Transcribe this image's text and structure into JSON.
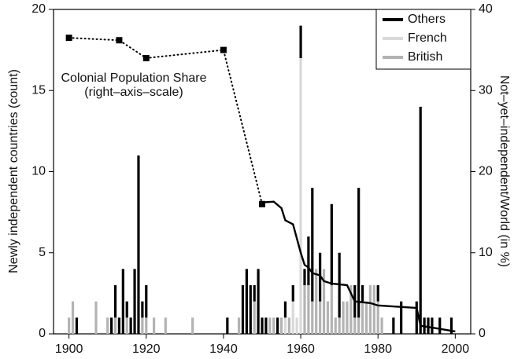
{
  "chart_data": {
    "type": "bar",
    "stacked": true,
    "ylabel": "Newly independent countries (count)",
    "y2label": "Not–yet–independent/World (in %)",
    "xlim": [
      1896,
      2004
    ],
    "xticks": [
      1900,
      1920,
      1940,
      1960,
      1980,
      2000
    ],
    "ylim": [
      0,
      20
    ],
    "yticks": [
      0,
      5,
      10,
      15,
      20
    ],
    "y2lim": [
      0,
      40
    ],
    "y2ticks": [
      0,
      10,
      20,
      30,
      40
    ],
    "legend": "top-right",
    "x": [
      1900,
      1901,
      1902,
      1907,
      1910,
      1911,
      1912,
      1913,
      1914,
      1915,
      1916,
      1917,
      1918,
      1919,
      1920,
      1922,
      1925,
      1932,
      1941,
      1944,
      1945,
      1946,
      1947,
      1948,
      1949,
      1950,
      1951,
      1952,
      1953,
      1954,
      1955,
      1956,
      1957,
      1958,
      1959,
      1960,
      1961,
      1962,
      1963,
      1964,
      1965,
      1966,
      1967,
      1968,
      1969,
      1970,
      1971,
      1972,
      1973,
      1974,
      1975,
      1976,
      1977,
      1978,
      1979,
      1980,
      1981,
      1984,
      1986,
      1990,
      1991,
      1992,
      1993,
      1994,
      1996,
      1999
    ],
    "series": [
      {
        "name": "British",
        "color": "#b3b3b3",
        "values": [
          1,
          2,
          0,
          2,
          1,
          0,
          1,
          0,
          0,
          1,
          0,
          0,
          0,
          1,
          1,
          1,
          1,
          1,
          0,
          1,
          0,
          0,
          0,
          2,
          0,
          0,
          0,
          1,
          1,
          0,
          1,
          0,
          1,
          0,
          0,
          0,
          3,
          3,
          2,
          4,
          2,
          4,
          2,
          3,
          1,
          1,
          2,
          2,
          3,
          1,
          1,
          2,
          2,
          3,
          3,
          2,
          1,
          0,
          0,
          0,
          0,
          0,
          0,
          0,
          0,
          0
        ]
      },
      {
        "name": "French",
        "color": "#d9d9d9",
        "values": [
          0,
          0,
          0,
          0,
          0,
          0,
          0,
          0,
          0,
          0,
          0,
          0,
          0,
          0,
          0,
          0,
          0,
          0,
          0,
          0,
          0,
          0,
          0,
          0,
          0,
          0,
          0,
          0,
          0,
          0,
          0,
          1,
          0,
          2,
          1,
          17,
          0,
          0,
          0,
          0,
          0,
          0,
          0,
          0,
          0,
          0,
          0,
          0,
          0,
          0,
          0,
          0,
          0,
          0,
          0,
          0,
          0,
          0,
          0,
          0,
          0,
          0,
          0,
          0,
          0,
          0
        ]
      },
      {
        "name": "Others",
        "color": "#000000",
        "values": [
          0,
          0,
          1,
          0,
          0,
          1,
          2,
          1,
          4,
          1,
          1,
          4,
          11,
          1,
          2,
          0,
          0,
          0,
          1,
          0,
          3,
          4,
          3,
          1,
          4,
          1,
          1,
          0,
          0,
          1,
          0,
          1,
          0,
          1,
          0,
          2,
          1,
          3,
          7,
          0,
          3,
          0,
          0,
          5,
          0,
          4,
          0,
          0,
          0,
          2,
          8,
          1,
          0,
          0,
          0,
          1,
          0,
          1,
          2,
          2,
          14,
          1,
          1,
          1,
          1,
          1
        ]
      }
    ],
    "lines": [
      {
        "axis": "y2",
        "style": "dotted",
        "markers": true,
        "color": "#000000",
        "x": [
          1900,
          1913,
          1920,
          1940,
          1950
        ],
        "values": [
          36.5,
          36.2,
          34,
          35,
          16
        ]
      },
      {
        "axis": "y2",
        "style": "solid",
        "markers": false,
        "color": "#000000",
        "x": [
          1950,
          1953,
          1955,
          1956,
          1958,
          1960,
          1961,
          1962,
          1963,
          1965,
          1966,
          1968,
          1972,
          1973,
          1974,
          1978,
          1980,
          1990,
          1991,
          1995,
          2000
        ],
        "values": [
          16.2,
          16.3,
          15.5,
          14,
          13.5,
          10,
          8.5,
          8.2,
          7.5,
          7.2,
          6.5,
          6.2,
          6,
          5,
          4,
          3.8,
          3.5,
          3.2,
          1,
          0.7,
          0.3
        ]
      }
    ],
    "annotation": [
      "Colonial Population Share",
      "(right–axis–scale)"
    ]
  }
}
